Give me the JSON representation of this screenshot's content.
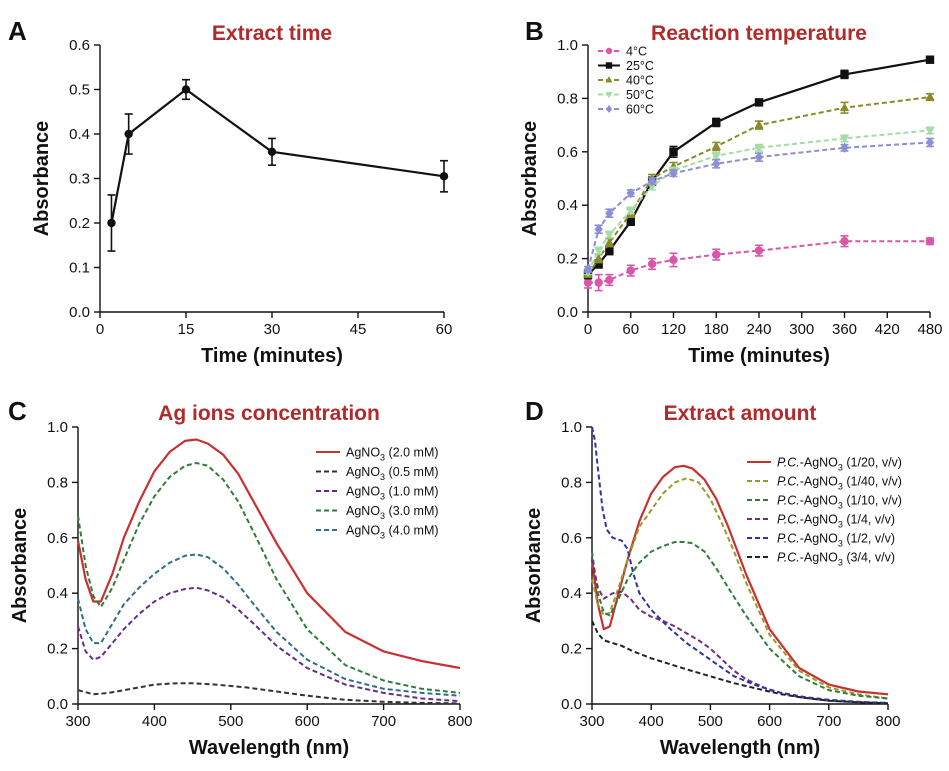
{
  "colors": {
    "title": "#b22a2a"
  },
  "chart_data": [
    {
      "id": "A",
      "letter": "A",
      "type": "line",
      "title": "Extract time",
      "xlabel": "Time (minutes)",
      "ylabel": "Absorbance",
      "xlim": [
        0,
        60
      ],
      "ylim": [
        0,
        0.6
      ],
      "xticks": [
        0,
        15,
        30,
        45,
        60
      ],
      "xtick_labels": [
        "0",
        "15",
        "30",
        "45",
        "60"
      ],
      "yticks": [
        0,
        0.1,
        0.2,
        0.3,
        0.4,
        0.5,
        0.6
      ],
      "ytick_labels": [
        "0.0",
        "0.1",
        "0.2",
        "0.3",
        "0.4",
        "0.5",
        "0.6"
      ],
      "grid": false,
      "series": [
        {
          "color": "#111111",
          "dash": false,
          "marker": "circle",
          "x": [
            2,
            5,
            15,
            30,
            60
          ],
          "y": [
            0.2,
            0.4,
            0.5,
            0.36,
            0.305
          ],
          "err": [
            0.063,
            0.045,
            0.022,
            0.03,
            0.035
          ]
        }
      ]
    },
    {
      "id": "B",
      "letter": "B",
      "type": "line",
      "title": "Reaction temperature",
      "xlabel": "Time (minutes)",
      "ylabel": "Absorbance",
      "xlim": [
        0,
        480
      ],
      "ylim": [
        0,
        1.0
      ],
      "xticks": [
        0,
        60,
        120,
        180,
        240,
        300,
        360,
        420,
        480
      ],
      "xtick_labels": [
        "0",
        "60",
        "120",
        "180",
        "240",
        "300",
        "360",
        "420",
        "480"
      ],
      "yticks": [
        0,
        0.2,
        0.4,
        0.6,
        0.8,
        1.0
      ],
      "ytick_labels": [
        "0.0",
        "0.2",
        "0.4",
        "0.6",
        "0.8",
        "1.0"
      ],
      "grid": false,
      "legend": "top-left",
      "series": [
        {
          "name": "4°C",
          "color": "#d957a8",
          "dash": true,
          "marker": "circle",
          "x": [
            0,
            15,
            30,
            60,
            90,
            120,
            180,
            240,
            360,
            480
          ],
          "y": [
            0.11,
            0.11,
            0.12,
            0.155,
            0.18,
            0.195,
            0.215,
            0.23,
            0.265,
            0.265
          ],
          "err": [
            0.02,
            0.03,
            0.02,
            0.02,
            0.02,
            0.025,
            0.02,
            0.02,
            0.02,
            0.012
          ]
        },
        {
          "name": "25°C",
          "color": "#111111",
          "dash": false,
          "marker": "square",
          "x": [
            0,
            15,
            30,
            60,
            90,
            120,
            180,
            240,
            360,
            480
          ],
          "y": [
            0.14,
            0.18,
            0.23,
            0.34,
            0.49,
            0.6,
            0.71,
            0.785,
            0.89,
            0.945
          ],
          "err": [
            0.015,
            0.015,
            0.015,
            0.015,
            0.015,
            0.02,
            0.015,
            0.012,
            0.015,
            0.012
          ]
        },
        {
          "name": "40°C",
          "color": "#8a8a2a",
          "dash": true,
          "marker": "triangle",
          "x": [
            0,
            15,
            30,
            60,
            90,
            120,
            180,
            240,
            360,
            480
          ],
          "y": [
            0.14,
            0.2,
            0.26,
            0.37,
            0.5,
            0.545,
            0.62,
            0.7,
            0.765,
            0.805
          ],
          "err": [
            0.01,
            0.015,
            0.015,
            0.015,
            0.015,
            0.015,
            0.015,
            0.015,
            0.02,
            0.012
          ]
        },
        {
          "name": "50°C",
          "color": "#a6dca6",
          "dash": true,
          "marker": "triangle-down",
          "x": [
            0,
            15,
            30,
            60,
            90,
            120,
            180,
            240,
            360,
            480
          ],
          "y": [
            0.15,
            0.23,
            0.29,
            0.38,
            0.47,
            0.53,
            0.585,
            0.615,
            0.65,
            0.68
          ],
          "err": [
            0.01,
            0.012,
            0.012,
            0.012,
            0.012,
            0.012,
            0.012,
            0.012,
            0.012,
            0.012
          ]
        },
        {
          "name": "60°C",
          "color": "#8a8fd6",
          "dash": true,
          "marker": "diamond",
          "x": [
            0,
            15,
            30,
            60,
            90,
            120,
            180,
            240,
            360,
            480
          ],
          "y": [
            0.16,
            0.31,
            0.37,
            0.445,
            0.49,
            0.52,
            0.555,
            0.58,
            0.615,
            0.635
          ],
          "err": [
            0.01,
            0.015,
            0.015,
            0.012,
            0.012,
            0.012,
            0.015,
            0.015,
            0.012,
            0.015
          ]
        }
      ]
    },
    {
      "id": "C",
      "letter": "C",
      "type": "line",
      "title": "Ag ions concentration",
      "xlabel": "Wavelength (nm)",
      "ylabel": "Absorbance",
      "xlim": [
        300,
        800
      ],
      "ylim": [
        0,
        1.0
      ],
      "xticks": [
        300,
        400,
        500,
        600,
        700,
        800
      ],
      "xtick_labels": [
        "300",
        "400",
        "500",
        "600",
        "700",
        "800"
      ],
      "yticks": [
        0,
        0.2,
        0.4,
        0.6,
        0.8,
        1.0
      ],
      "ytick_labels": [
        "0.0",
        "0.2",
        "0.4",
        "0.6",
        "0.8",
        "1.0"
      ],
      "grid": false,
      "legend": "top-right",
      "series": [
        {
          "name": "AgNO",
          "sub": "3",
          "suffix": " (2.0 mM)",
          "color": "#c93030",
          "dash": false,
          "x": [
            300,
            310,
            320,
            330,
            345,
            360,
            380,
            400,
            420,
            440,
            455,
            470,
            490,
            510,
            530,
            560,
            600,
            650,
            700,
            750,
            800
          ],
          "y": [
            0.59,
            0.45,
            0.37,
            0.37,
            0.47,
            0.6,
            0.73,
            0.84,
            0.91,
            0.95,
            0.955,
            0.94,
            0.9,
            0.83,
            0.73,
            0.58,
            0.4,
            0.26,
            0.19,
            0.155,
            0.13
          ]
        },
        {
          "name": "AgNO",
          "sub": "3",
          "suffix": " (0.5 mM)",
          "color": "#333333",
          "dash": true,
          "x": [
            300,
            320,
            340,
            370,
            400,
            430,
            450,
            480,
            520,
            560,
            600,
            650,
            700,
            750,
            800
          ],
          "y": [
            0.05,
            0.035,
            0.04,
            0.055,
            0.07,
            0.075,
            0.075,
            0.07,
            0.06,
            0.045,
            0.03,
            0.015,
            0.008,
            0.004,
            0.002
          ]
        },
        {
          "name": "AgNO",
          "sub": "3",
          "suffix": " (1.0 mM)",
          "color": "#6a2a8a",
          "dash": true,
          "x": [
            300,
            310,
            320,
            330,
            345,
            360,
            380,
            400,
            420,
            440,
            455,
            470,
            490,
            510,
            530,
            560,
            600,
            650,
            700,
            750,
            800
          ],
          "y": [
            0.28,
            0.19,
            0.16,
            0.17,
            0.22,
            0.27,
            0.325,
            0.37,
            0.4,
            0.415,
            0.42,
            0.41,
            0.385,
            0.34,
            0.29,
            0.21,
            0.13,
            0.07,
            0.04,
            0.02,
            0.01
          ]
        },
        {
          "name": "AgNO",
          "sub": "3",
          "suffix": " (3.0 mM)",
          "color": "#2e7d3a",
          "dash": true,
          "x": [
            300,
            310,
            320,
            330,
            345,
            360,
            380,
            400,
            420,
            440,
            455,
            470,
            490,
            510,
            530,
            560,
            600,
            650,
            700,
            750,
            800
          ],
          "y": [
            0.68,
            0.5,
            0.39,
            0.35,
            0.42,
            0.52,
            0.65,
            0.75,
            0.82,
            0.86,
            0.87,
            0.86,
            0.81,
            0.73,
            0.62,
            0.45,
            0.27,
            0.14,
            0.085,
            0.055,
            0.04
          ]
        },
        {
          "name": "AgNO",
          "sub": "3",
          "suffix": " (4.0 mM)",
          "color": "#2f6e8a",
          "dash": true,
          "x": [
            300,
            310,
            320,
            330,
            345,
            360,
            380,
            400,
            420,
            440,
            455,
            470,
            490,
            510,
            530,
            560,
            600,
            650,
            700,
            750,
            800
          ],
          "y": [
            0.38,
            0.27,
            0.22,
            0.22,
            0.29,
            0.36,
            0.42,
            0.47,
            0.51,
            0.535,
            0.54,
            0.53,
            0.49,
            0.43,
            0.36,
            0.26,
            0.16,
            0.09,
            0.055,
            0.04,
            0.03
          ]
        }
      ]
    },
    {
      "id": "D",
      "letter": "D",
      "type": "line",
      "title": "Extract amount",
      "xlabel": "Wavelength (nm)",
      "ylabel": "Absorbance",
      "xlim": [
        300,
        800
      ],
      "ylim": [
        0,
        1.0
      ],
      "xticks": [
        300,
        400,
        500,
        600,
        700,
        800
      ],
      "xtick_labels": [
        "300",
        "400",
        "500",
        "600",
        "700",
        "800"
      ],
      "yticks": [
        0,
        0.2,
        0.4,
        0.6,
        0.8,
        1.0
      ],
      "ytick_labels": [
        "0.0",
        "0.2",
        "0.4",
        "0.6",
        "0.8",
        "1.0"
      ],
      "grid": false,
      "legend": "top-right",
      "series": [
        {
          "name": "P.C.",
          "italic": true,
          "mid": "-AgNO",
          "sub": "3",
          "suffix": " (1/20, v/v)",
          "color": "#c93030",
          "dash": false,
          "x": [
            300,
            310,
            320,
            330,
            345,
            360,
            380,
            400,
            420,
            440,
            455,
            470,
            490,
            510,
            530,
            560,
            600,
            650,
            700,
            750,
            800
          ],
          "y": [
            0.52,
            0.36,
            0.27,
            0.28,
            0.4,
            0.52,
            0.66,
            0.76,
            0.82,
            0.855,
            0.86,
            0.85,
            0.81,
            0.74,
            0.64,
            0.47,
            0.27,
            0.13,
            0.07,
            0.045,
            0.035
          ]
        },
        {
          "name": "P.C.",
          "italic": true,
          "mid": "-AgNO",
          "sub": "3",
          "suffix": " (1/40, v/v)",
          "color": "#9a9a2a",
          "dash": true,
          "x": [
            300,
            310,
            320,
            330,
            345,
            360,
            380,
            400,
            420,
            440,
            460,
            480,
            500,
            520,
            540,
            560,
            600,
            650,
            700,
            750,
            800
          ],
          "y": [
            0.45,
            0.36,
            0.32,
            0.33,
            0.42,
            0.52,
            0.64,
            0.7,
            0.76,
            0.8,
            0.815,
            0.8,
            0.74,
            0.65,
            0.55,
            0.44,
            0.25,
            0.12,
            0.06,
            0.035,
            0.02
          ]
        },
        {
          "name": "P.C.",
          "italic": true,
          "mid": "-AgNO",
          "sub": "3",
          "suffix": " (1/10, v/v)",
          "color": "#2e7d3a",
          "dash": true,
          "x": [
            300,
            310,
            320,
            330,
            345,
            360,
            380,
            400,
            420,
            440,
            455,
            470,
            490,
            510,
            530,
            560,
            600,
            650,
            700,
            750,
            800
          ],
          "y": [
            0.55,
            0.4,
            0.33,
            0.32,
            0.38,
            0.45,
            0.51,
            0.55,
            0.57,
            0.585,
            0.585,
            0.58,
            0.55,
            0.49,
            0.42,
            0.32,
            0.2,
            0.1,
            0.05,
            0.03,
            0.02
          ]
        },
        {
          "name": "P.C.",
          "italic": true,
          "mid": "-AgNO",
          "sub": "3",
          "suffix": " (1/4, v/v)",
          "color": "#7a2a7a",
          "dash": true,
          "x": [
            300,
            310,
            320,
            335,
            350,
            365,
            380,
            400,
            420,
            440,
            460,
            480,
            500,
            520,
            540,
            560,
            600,
            650,
            700,
            750,
            800
          ],
          "y": [
            0.52,
            0.42,
            0.38,
            0.4,
            0.405,
            0.38,
            0.34,
            0.315,
            0.3,
            0.28,
            0.255,
            0.23,
            0.2,
            0.16,
            0.12,
            0.09,
            0.05,
            0.025,
            0.012,
            0.006,
            0.003
          ]
        },
        {
          "name": "P.C.",
          "italic": true,
          "mid": "-AgNO",
          "sub": "3",
          "suffix": " (1/2, v/v)",
          "color": "#2a35a8",
          "dash": true,
          "x": [
            300,
            305,
            310,
            318,
            325,
            335,
            350,
            360,
            370,
            380,
            400,
            430,
            460,
            500,
            540,
            580,
            620,
            660,
            700,
            750,
            800
          ],
          "y": [
            1.0,
            0.95,
            0.85,
            0.7,
            0.63,
            0.6,
            0.59,
            0.56,
            0.47,
            0.4,
            0.34,
            0.275,
            0.22,
            0.16,
            0.1,
            0.065,
            0.04,
            0.025,
            0.015,
            0.008,
            0.004
          ]
        },
        {
          "name": "P.C.",
          "italic": true,
          "mid": "-AgNO",
          "sub": "3",
          "suffix": " (3/4, v/v)",
          "color": "#222222",
          "dash": true,
          "x": [
            300,
            310,
            320,
            335,
            350,
            370,
            400,
            430,
            460,
            500,
            540,
            580,
            620,
            660,
            700,
            750,
            800
          ],
          "y": [
            0.3,
            0.255,
            0.23,
            0.22,
            0.21,
            0.19,
            0.165,
            0.145,
            0.125,
            0.1,
            0.075,
            0.055,
            0.035,
            0.022,
            0.012,
            0.006,
            0.003
          ]
        }
      ]
    }
  ]
}
